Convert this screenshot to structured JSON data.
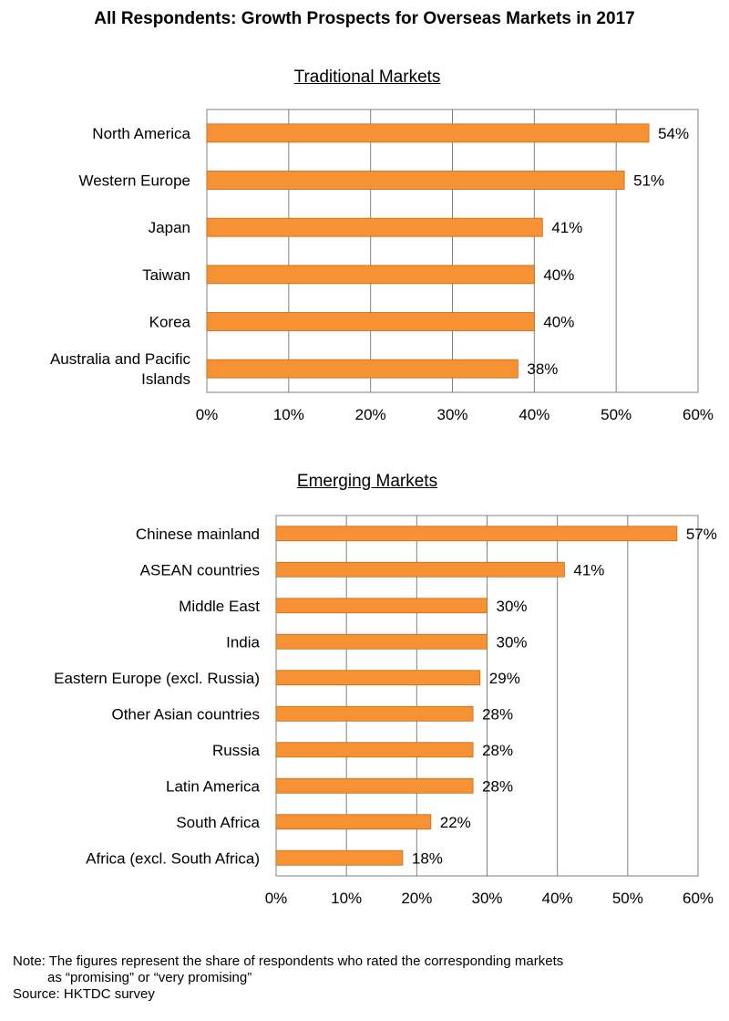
{
  "title": "All Respondents: Growth Prospects for Overseas Markets in 2017",
  "colors": {
    "bar": "#F79234",
    "bar_stroke": "#C46A1A",
    "grid": "#808080",
    "frame": "#808080"
  },
  "chart_data": [
    {
      "type": "bar",
      "orientation": "horizontal",
      "title": "Traditional Markets",
      "categories": [
        "North America",
        "Western Europe",
        "Japan",
        "Taiwan",
        "Korea",
        "Australia and Pacific Islands"
      ],
      "category_lines": [
        [
          "North America"
        ],
        [
          "Western Europe"
        ],
        [
          "Japan"
        ],
        [
          "Taiwan"
        ],
        [
          "Korea"
        ],
        [
          "Australia and Pacific",
          "Islands"
        ]
      ],
      "values": [
        54,
        51,
        41,
        40,
        40,
        38
      ],
      "value_labels": [
        "54%",
        "51%",
        "41%",
        "40%",
        "40%",
        "38%"
      ],
      "xlim": [
        0,
        60
      ],
      "ticks": [
        0,
        10,
        20,
        30,
        40,
        50,
        60
      ],
      "tick_labels": [
        "0%",
        "10%",
        "20%",
        "30%",
        "40%",
        "50%",
        "60%"
      ],
      "xlabel": "",
      "ylabel": "",
      "grid": true
    },
    {
      "type": "bar",
      "orientation": "horizontal",
      "title": "Emerging Markets",
      "categories": [
        "Chinese mainland",
        "ASEAN countries",
        "Middle East",
        "India",
        "Eastern Europe (excl. Russia)",
        "Other Asian countries",
        "Russia",
        "Latin America",
        "South Africa",
        "Africa (excl. South Africa)"
      ],
      "category_lines": [
        [
          "Chinese mainland"
        ],
        [
          "ASEAN countries"
        ],
        [
          "Middle East"
        ],
        [
          "India"
        ],
        [
          "Eastern Europe (excl. Russia)"
        ],
        [
          "Other Asian countries"
        ],
        [
          "Russia"
        ],
        [
          "Latin America"
        ],
        [
          "South Africa"
        ],
        [
          "Africa (excl. South Africa)"
        ]
      ],
      "values": [
        57,
        41,
        30,
        30,
        29,
        28,
        28,
        28,
        22,
        18
      ],
      "value_labels": [
        "57%",
        "41%",
        "30%",
        "30%",
        "29%",
        "28%",
        "28%",
        "28%",
        "22%",
        "18%"
      ],
      "xlim": [
        0,
        60
      ],
      "ticks": [
        0,
        10,
        20,
        30,
        40,
        50,
        60
      ],
      "tick_labels": [
        "0%",
        "10%",
        "20%",
        "30%",
        "40%",
        "50%",
        "60%"
      ],
      "xlabel": "",
      "ylabel": "",
      "grid": true
    }
  ],
  "note": {
    "line1": "Note: The figures represent the share of respondents who rated the corresponding markets",
    "line2": "as “promising” or “very promising”",
    "source": "Source: HKTDC survey"
  }
}
